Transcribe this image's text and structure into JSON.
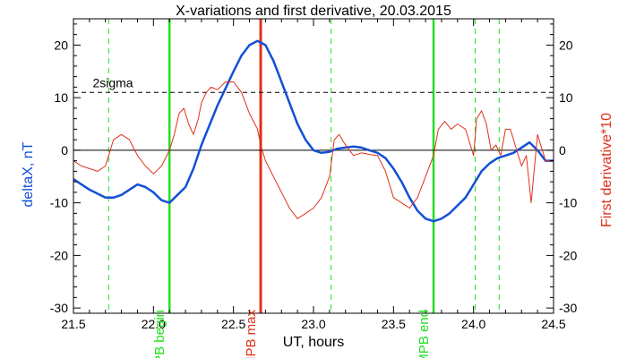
{
  "chart_data": {
    "type": "line",
    "title": "X-variations and first derivative, 20.03.2015",
    "xlabel": "UT, hours",
    "ylabel_left": "deltaX, nT",
    "ylabel_right": "First derivative*10",
    "xlim": [
      21.5,
      24.5
    ],
    "ylim": [
      -31,
      25
    ],
    "x_ticks": [
      "21.5",
      "22.0",
      "22.5",
      "23.0",
      "23.5",
      "24.0",
      "24.5"
    ],
    "y_ticks": [
      "-30",
      "-20",
      "-10",
      "0",
      "10",
      "20"
    ],
    "colors": {
      "deltaX": "#1450d6",
      "derivative": "#e0301a",
      "mpb": "#22e022",
      "max": "#e0301a"
    },
    "reference_lines": [
      {
        "label": "2sigma",
        "y": 11,
        "style": "dashed"
      },
      {
        "label": "",
        "y": 0,
        "style": "solid"
      }
    ],
    "vertical_lines": [
      {
        "x": 21.72,
        "style": "dashed-green",
        "label": ""
      },
      {
        "x": 22.1,
        "style": "solid-green",
        "label": "MPB begin"
      },
      {
        "x": 22.67,
        "style": "solid-red",
        "label": "MPB max"
      },
      {
        "x": 23.11,
        "style": "dashed-green",
        "label": ""
      },
      {
        "x": 23.75,
        "style": "solid-green",
        "label": "MPB end"
      },
      {
        "x": 24.01,
        "style": "dashed-green",
        "label": ""
      },
      {
        "x": 24.16,
        "style": "dashed-green",
        "label": ""
      }
    ],
    "series": [
      {
        "name": "deltaX",
        "axis": "left",
        "x": [
          21.5,
          21.6,
          21.7,
          21.75,
          21.8,
          21.9,
          21.95,
          22.0,
          22.05,
          22.1,
          22.15,
          22.2,
          22.25,
          22.3,
          22.4,
          22.5,
          22.55,
          22.6,
          22.65,
          22.7,
          22.75,
          22.8,
          22.85,
          22.9,
          22.95,
          23.0,
          23.05,
          23.1,
          23.15,
          23.2,
          23.25,
          23.3,
          23.35,
          23.4,
          23.45,
          23.5,
          23.55,
          23.6,
          23.65,
          23.7,
          23.75,
          23.8,
          23.85,
          23.9,
          23.95,
          24.0,
          24.05,
          24.1,
          24.15,
          24.2,
          24.25,
          24.3,
          24.35,
          24.4,
          24.45,
          24.5
        ],
        "values": [
          -5.5,
          -7.5,
          -9.0,
          -9.0,
          -8.5,
          -6.5,
          -7.0,
          -8.0,
          -9.5,
          -10.0,
          -8.5,
          -7.0,
          -3.5,
          1.0,
          8.5,
          15.0,
          18.0,
          20.0,
          20.8,
          20.0,
          17.0,
          13.0,
          9.0,
          5.0,
          2.0,
          0.0,
          -0.5,
          -0.3,
          0.3,
          0.5,
          0.7,
          0.5,
          0.0,
          -0.5,
          -1.5,
          -3.5,
          -6.0,
          -9.0,
          -11.5,
          -13.0,
          -13.5,
          -13.0,
          -12.0,
          -10.5,
          -9.0,
          -6.5,
          -4.0,
          -2.5,
          -1.5,
          -1.0,
          -0.5,
          0.5,
          1.5,
          0.0,
          -2.0,
          -2.0
        ]
      },
      {
        "name": "First derivative*10",
        "axis": "right",
        "x": [
          21.5,
          21.55,
          21.6,
          21.65,
          21.7,
          21.72,
          21.75,
          21.8,
          21.85,
          21.9,
          21.95,
          22.0,
          22.05,
          22.1,
          22.13,
          22.16,
          22.19,
          22.22,
          22.25,
          22.28,
          22.3,
          22.33,
          22.36,
          22.4,
          22.45,
          22.5,
          22.55,
          22.6,
          22.65,
          22.67,
          22.7,
          22.75,
          22.8,
          22.85,
          22.9,
          22.95,
          23.0,
          23.05,
          23.1,
          23.13,
          23.16,
          23.2,
          23.25,
          23.3,
          23.35,
          23.4,
          23.45,
          23.5,
          23.55,
          23.6,
          23.65,
          23.7,
          23.75,
          23.78,
          23.82,
          23.86,
          23.9,
          23.95,
          24.0,
          24.02,
          24.05,
          24.08,
          24.11,
          24.14,
          24.17,
          24.2,
          24.23,
          24.26,
          24.3,
          24.33,
          24.36,
          24.4,
          24.45,
          24.5
        ],
        "values": [
          -2,
          -3,
          -3.5,
          -4,
          -3,
          -1,
          2,
          3,
          2,
          -1,
          -3,
          -4.5,
          -3,
          0,
          3,
          7,
          8,
          5,
          3,
          6,
          9,
          11,
          12,
          11.5,
          13,
          13,
          11,
          7,
          4,
          1,
          -2,
          -5,
          -8,
          -11,
          -13,
          -12,
          -11,
          -9,
          -5,
          2,
          3,
          1,
          -1,
          -0.5,
          -0.8,
          -1,
          -4,
          -9,
          -10,
          -11,
          -9,
          -5,
          -1,
          4,
          5.5,
          4,
          5,
          4,
          -1,
          6,
          7.5,
          5,
          0,
          1,
          -1,
          4,
          4,
          1,
          -3,
          -1,
          -10,
          3,
          -2,
          -2
        ]
      }
    ]
  }
}
